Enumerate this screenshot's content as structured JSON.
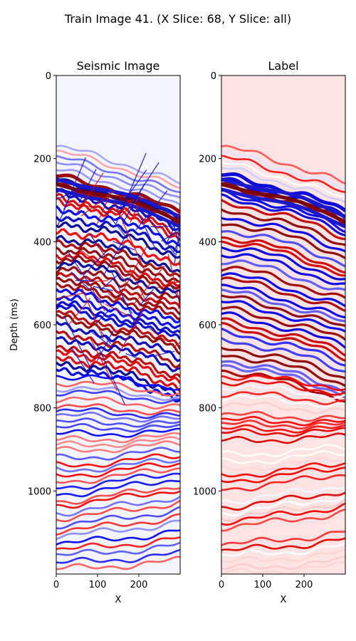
{
  "figure": {
    "suptitle": "Train Image 41. (X Slice: 68, Y Slice: all)"
  },
  "chart_data": [
    {
      "type": "heatmap",
      "title": "Seismic Image",
      "xlabel": "X",
      "ylabel": "Depth (ms)",
      "xlim": [
        0,
        300
      ],
      "ylim": [
        1200,
        0
      ],
      "xticks": [
        0,
        100,
        200
      ],
      "yticks": [
        0,
        200,
        400,
        600,
        800,
        1000
      ],
      "colormap": "seismic",
      "colors": {
        "negative": "#00008c",
        "zero": "#ffffff",
        "positive": "#8c0000"
      },
      "description_values": "seismic reflection amplitudes; strong dipping reflectors at depth ~250-350 ms sloping down to the right, chaotic high-amplitude zone between ~280 and ~700 ms, weaker layered reflectors below 700 ms"
    },
    {
      "type": "heatmap",
      "title": "Label",
      "xlabel": "X",
      "ylabel": "",
      "xlim": [
        0,
        300
      ],
      "ylim": [
        1200,
        0
      ],
      "xticks": [
        0,
        100,
        200
      ],
      "yticks": [
        0,
        200,
        400,
        600,
        800,
        1000
      ],
      "colormap": "seismic",
      "colors": {
        "negative": "#00008c",
        "zero": "#ffffff",
        "positive": "#8c0000"
      },
      "description_values": "label volume; smoother layered reflectors following the same structure, pinkish background"
    }
  ]
}
